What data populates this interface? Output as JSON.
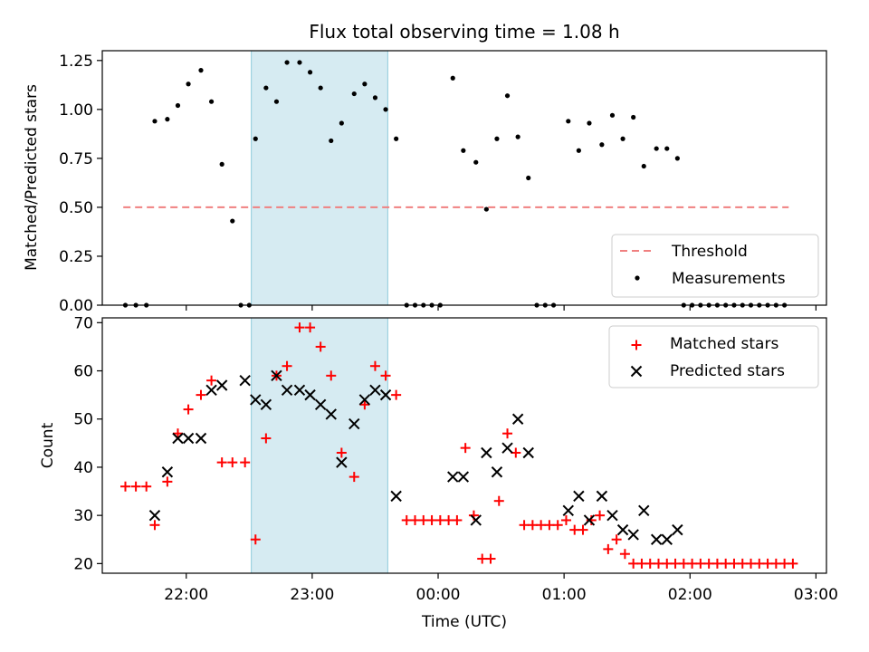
{
  "chart_data": [
    {
      "type": "scatter",
      "title": "Flux total observing time = 1.08 h",
      "ylabel": "Matched/Predicted stars",
      "xlabel": "",
      "xlim": [
        "21:20",
        "03:05"
      ],
      "ylim": [
        0,
        1.3
      ],
      "yticks": [
        0.0,
        0.25,
        0.5,
        0.75,
        1.0,
        1.25
      ],
      "ytick_labels": [
        "0.00",
        "0.25",
        "0.50",
        "0.75",
        "1.00",
        "1.25"
      ],
      "highlight_span": [
        "22:31",
        "23:36"
      ],
      "legend_position": "lower right",
      "threshold": {
        "name": "Threshold",
        "y": 0.5,
        "x": [
          "21:30",
          "02:47"
        ],
        "color": "#f08080"
      },
      "series": [
        {
          "name": "Measurements",
          "color": "#000000",
          "points": [
            [
              "21:31",
              0
            ],
            [
              "21:36",
              0
            ],
            [
              "21:41",
              0
            ],
            [
              "21:45",
              0.94
            ],
            [
              "21:51",
              0.95
            ],
            [
              "21:56",
              1.02
            ],
            [
              "22:01",
              1.13
            ],
            [
              "22:07",
              1.2
            ],
            [
              "22:12",
              1.04
            ],
            [
              "22:17",
              0.72
            ],
            [
              "22:22",
              0.43
            ],
            [
              "22:26",
              0
            ],
            [
              "22:30",
              0
            ],
            [
              "22:33",
              0.85
            ],
            [
              "22:38",
              1.11
            ],
            [
              "22:43",
              1.04
            ],
            [
              "22:48",
              1.24
            ],
            [
              "22:54",
              1.24
            ],
            [
              "22:59",
              1.19
            ],
            [
              "23:04",
              1.11
            ],
            [
              "23:09",
              0.84
            ],
            [
              "23:14",
              0.93
            ],
            [
              "23:20",
              1.08
            ],
            [
              "23:25",
              1.13
            ],
            [
              "23:30",
              1.06
            ],
            [
              "23:35",
              1.0
            ],
            [
              "23:40",
              0.85
            ],
            [
              "23:45",
              0
            ],
            [
              "23:49",
              0
            ],
            [
              "23:53",
              0
            ],
            [
              "23:57",
              0
            ],
            [
              "00:01",
              0
            ],
            [
              "00:07",
              1.16
            ],
            [
              "00:12",
              0.79
            ],
            [
              "00:18",
              0.73
            ],
            [
              "00:23",
              0.49
            ],
            [
              "00:28",
              0.85
            ],
            [
              "00:33",
              1.07
            ],
            [
              "00:38",
              0.86
            ],
            [
              "00:43",
              0.65
            ],
            [
              "00:47",
              0
            ],
            [
              "00:51",
              0
            ],
            [
              "00:55",
              0
            ],
            [
              "01:02",
              0.94
            ],
            [
              "01:07",
              0.79
            ],
            [
              "01:12",
              0.93
            ],
            [
              "01:18",
              0.82
            ],
            [
              "01:23",
              0.97
            ],
            [
              "01:28",
              0.85
            ],
            [
              "01:33",
              0.96
            ],
            [
              "01:38",
              0.71
            ],
            [
              "01:44",
              0.8
            ],
            [
              "01:49",
              0.8
            ],
            [
              "01:54",
              0.75
            ],
            [
              "01:57",
              0
            ],
            [
              "02:01",
              0
            ],
            [
              "02:05",
              0
            ],
            [
              "02:09",
              0
            ],
            [
              "02:13",
              0
            ],
            [
              "02:17",
              0
            ],
            [
              "02:21",
              0
            ],
            [
              "02:25",
              0
            ],
            [
              "02:29",
              0
            ],
            [
              "02:33",
              0
            ],
            [
              "02:37",
              0
            ],
            [
              "02:41",
              0
            ],
            [
              "02:45",
              0
            ]
          ]
        }
      ]
    },
    {
      "type": "scatter",
      "title": "",
      "ylabel": "Count",
      "xlabel": "Time (UTC)",
      "xlim": [
        "21:20",
        "03:05"
      ],
      "ylim": [
        18,
        71
      ],
      "yticks": [
        20,
        30,
        40,
        50,
        60,
        70
      ],
      "xticks": [
        "22:00",
        "23:00",
        "00:00",
        "01:00",
        "02:00",
        "03:00"
      ],
      "highlight_span": [
        "22:31",
        "23:36"
      ],
      "legend_position": "upper right",
      "series": [
        {
          "name": "Matched stars",
          "marker": "plus",
          "color": "#ff0000",
          "points": [
            [
              "21:31",
              36
            ],
            [
              "21:36",
              36
            ],
            [
              "21:41",
              36
            ],
            [
              "21:45",
              28
            ],
            [
              "21:51",
              37
            ],
            [
              "21:56",
              47
            ],
            [
              "22:01",
              52
            ],
            [
              "22:07",
              55
            ],
            [
              "22:12",
              58
            ],
            [
              "22:17",
              41
            ],
            [
              "22:22",
              41
            ],
            [
              "22:28",
              41
            ],
            [
              "22:33",
              25
            ],
            [
              "22:38",
              46
            ],
            [
              "22:43",
              59
            ],
            [
              "22:48",
              61
            ],
            [
              "22:54",
              69
            ],
            [
              "22:59",
              69
            ],
            [
              "23:04",
              65
            ],
            [
              "23:09",
              59
            ],
            [
              "23:14",
              43
            ],
            [
              "23:20",
              38
            ],
            [
              "23:25",
              53
            ],
            [
              "23:30",
              61
            ],
            [
              "23:35",
              59
            ],
            [
              "23:40",
              55
            ],
            [
              "23:45",
              29
            ],
            [
              "23:49",
              29
            ],
            [
              "23:53",
              29
            ],
            [
              "23:57",
              29
            ],
            [
              "00:01",
              29
            ],
            [
              "00:05",
              29
            ],
            [
              "00:09",
              29
            ],
            [
              "00:13",
              44
            ],
            [
              "00:17",
              30
            ],
            [
              "00:21",
              21
            ],
            [
              "00:25",
              21
            ],
            [
              "00:29",
              33
            ],
            [
              "00:33",
              47
            ],
            [
              "00:37",
              43
            ],
            [
              "00:41",
              28
            ],
            [
              "00:45",
              28
            ],
            [
              "00:49",
              28
            ],
            [
              "00:53",
              28
            ],
            [
              "00:57",
              28
            ],
            [
              "01:01",
              29
            ],
            [
              "01:05",
              27
            ],
            [
              "01:09",
              27
            ],
            [
              "01:13",
              29
            ],
            [
              "01:17",
              30
            ],
            [
              "01:21",
              23
            ],
            [
              "01:25",
              25
            ],
            [
              "01:29",
              22
            ],
            [
              "01:33",
              20
            ],
            [
              "01:37",
              20
            ],
            [
              "01:41",
              20
            ],
            [
              "01:45",
              20
            ],
            [
              "01:49",
              20
            ],
            [
              "01:53",
              20
            ],
            [
              "01:57",
              20
            ],
            [
              "02:01",
              20
            ],
            [
              "02:05",
              20
            ],
            [
              "02:09",
              20
            ],
            [
              "02:13",
              20
            ],
            [
              "02:17",
              20
            ],
            [
              "02:21",
              20
            ],
            [
              "02:25",
              20
            ],
            [
              "02:29",
              20
            ],
            [
              "02:33",
              20
            ],
            [
              "02:37",
              20
            ],
            [
              "02:41",
              20
            ],
            [
              "02:45",
              20
            ],
            [
              "02:49",
              20
            ]
          ]
        },
        {
          "name": "Predicted stars",
          "marker": "x",
          "color": "#000000",
          "points": [
            [
              "21:45",
              30
            ],
            [
              "21:51",
              39
            ],
            [
              "21:56",
              46
            ],
            [
              "22:01",
              46
            ],
            [
              "22:07",
              46
            ],
            [
              "22:12",
              56
            ],
            [
              "22:17",
              57
            ],
            [
              "22:28",
              58
            ],
            [
              "22:33",
              54
            ],
            [
              "22:38",
              53
            ],
            [
              "22:43",
              59
            ],
            [
              "22:48",
              56
            ],
            [
              "22:54",
              56
            ],
            [
              "22:59",
              55
            ],
            [
              "23:04",
              53
            ],
            [
              "23:09",
              51
            ],
            [
              "23:14",
              41
            ],
            [
              "23:20",
              49
            ],
            [
              "23:25",
              54
            ],
            [
              "23:30",
              56
            ],
            [
              "23:35",
              55
            ],
            [
              "23:40",
              34
            ],
            [
              "00:07",
              38
            ],
            [
              "00:12",
              38
            ],
            [
              "00:18",
              29
            ],
            [
              "00:23",
              43
            ],
            [
              "00:28",
              39
            ],
            [
              "00:33",
              44
            ],
            [
              "00:38",
              50
            ],
            [
              "00:43",
              43
            ],
            [
              "01:02",
              31
            ],
            [
              "01:07",
              34
            ],
            [
              "01:12",
              29
            ],
            [
              "01:18",
              34
            ],
            [
              "01:23",
              30
            ],
            [
              "01:28",
              27
            ],
            [
              "01:33",
              26
            ],
            [
              "01:38",
              31
            ],
            [
              "01:44",
              25
            ],
            [
              "01:49",
              25
            ],
            [
              "01:54",
              27
            ]
          ]
        }
      ]
    }
  ]
}
